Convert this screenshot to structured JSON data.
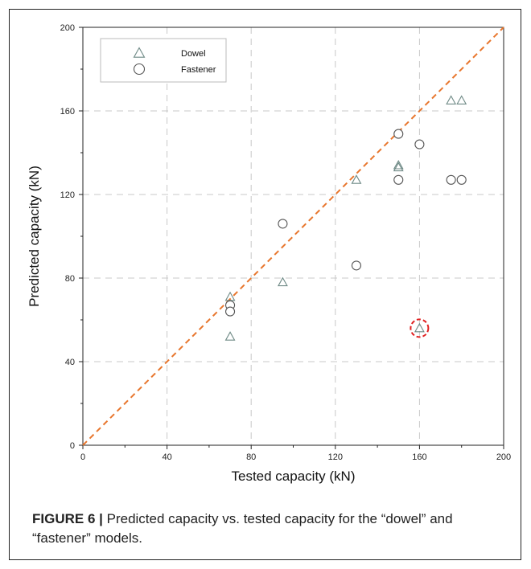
{
  "chart_data": {
    "type": "scatter",
    "title": "",
    "xlabel": "Tested capacity (kN)",
    "ylabel": "Predicted capacity (kN)",
    "xlim": [
      0,
      200
    ],
    "ylim": [
      0,
      200
    ],
    "xticks": [
      "0",
      "40",
      "80",
      "120",
      "160",
      "200"
    ],
    "yticks": [
      "0",
      "40",
      "80",
      "120",
      "160",
      "200"
    ],
    "grid": true,
    "legend_position": "top-left",
    "reference_line": {
      "from": [
        0,
        0
      ],
      "to": [
        200,
        200
      ],
      "style": "dashed",
      "color": "#e8762d"
    },
    "series": [
      {
        "name": "Dowel",
        "marker": "triangle",
        "color": "#6f8a86",
        "points": [
          {
            "x": 70,
            "y": 71
          },
          {
            "x": 70,
            "y": 52
          },
          {
            "x": 95,
            "y": 78
          },
          {
            "x": 130,
            "y": 127
          },
          {
            "x": 150,
            "y": 133
          },
          {
            "x": 150,
            "y": 134
          },
          {
            "x": 160,
            "y": 56
          },
          {
            "x": 175,
            "y": 165
          },
          {
            "x": 180,
            "y": 165
          }
        ]
      },
      {
        "name": "Fastener",
        "marker": "circle",
        "color": "#555555",
        "points": [
          {
            "x": 70,
            "y": 67
          },
          {
            "x": 70,
            "y": 64
          },
          {
            "x": 95,
            "y": 106
          },
          {
            "x": 130,
            "y": 86
          },
          {
            "x": 150,
            "y": 149
          },
          {
            "x": 150,
            "y": 127
          },
          {
            "x": 160,
            "y": 144
          },
          {
            "x": 175,
            "y": 127
          },
          {
            "x": 180,
            "y": 127
          }
        ]
      }
    ],
    "highlight": {
      "x": 160,
      "y": 56,
      "color": "#e02020",
      "style": "dashed-circle"
    }
  },
  "caption": {
    "label": "FIGURE 6 |",
    "text": " Predicted capacity vs. tested capacity for the “dowel” and “fastener” models."
  }
}
